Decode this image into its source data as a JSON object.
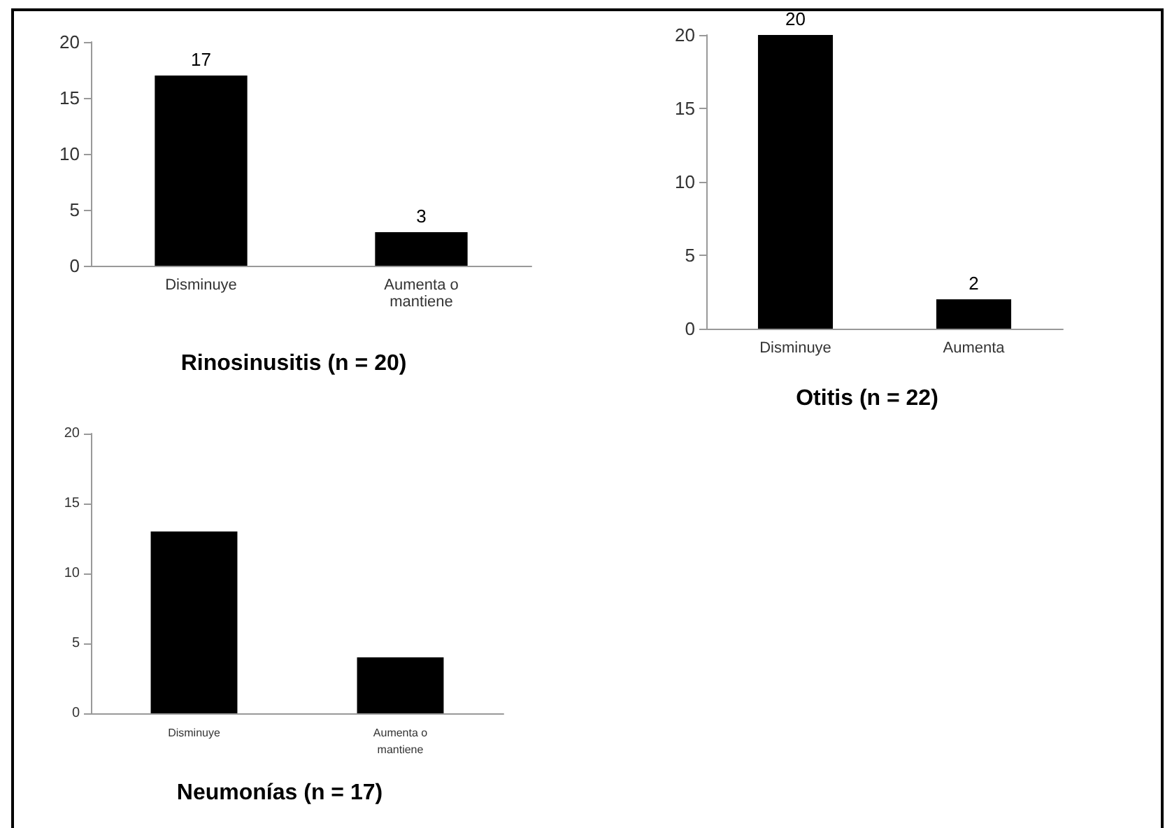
{
  "chart_data": [
    {
      "type": "bar",
      "title": "Rinosinusitis (n = 20)",
      "categories": [
        "Disminuye",
        "Aumenta o\nmantiene"
      ],
      "values": [
        17,
        3
      ],
      "color": "#000000",
      "ylim": [
        0,
        20
      ],
      "yticks": [
        0,
        5,
        10,
        15,
        20
      ],
      "grid": false,
      "data_labels": true
    },
    {
      "type": "bar",
      "title": "Otitis (n = 22)",
      "categories": [
        "Disminuye",
        "Aumenta"
      ],
      "values": [
        20,
        2
      ],
      "color": "#000000",
      "ylim": [
        0,
        20
      ],
      "yticks": [
        0,
        5,
        10,
        15,
        20
      ],
      "grid": false,
      "data_labels": true
    },
    {
      "type": "bar",
      "title": "Neumonías (n = 17)",
      "categories": [
        "Disminuye",
        "Aumenta o\nmantiene"
      ],
      "values": [
        13,
        4
      ],
      "color": "#000000",
      "ylim": [
        0,
        20
      ],
      "yticks": [
        0,
        5,
        10,
        15,
        20
      ],
      "grid": false
    }
  ]
}
